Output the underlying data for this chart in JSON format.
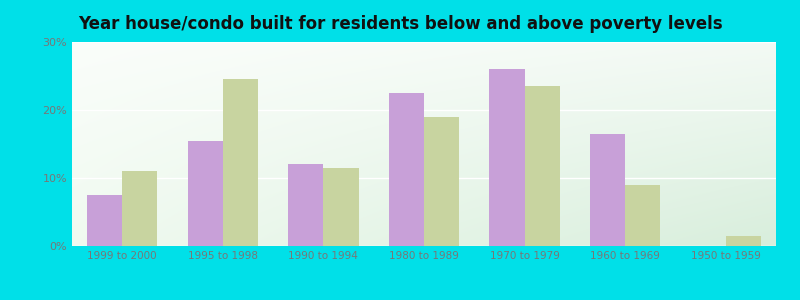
{
  "title": "Year house/condo built for residents below and above poverty levels",
  "categories": [
    "1999 to 2000",
    "1995 to 1998",
    "1990 to 1994",
    "1980 to 1989",
    "1970 to 1979",
    "1960 to 1969",
    "1950 to 1959"
  ],
  "below_poverty": [
    7.5,
    15.5,
    12.0,
    22.5,
    26.0,
    16.5,
    0.0
  ],
  "above_poverty": [
    11.0,
    24.5,
    11.5,
    19.0,
    23.5,
    9.0,
    1.5
  ],
  "color_below": "#c8a0d8",
  "color_above": "#c8d4a0",
  "ylim": [
    0,
    30
  ],
  "yticks": [
    0,
    10,
    20,
    30
  ],
  "ytick_labels": [
    "0%",
    "10%",
    "20%",
    "30%"
  ],
  "outer_color": "#00e0e8",
  "title_fontsize": 12,
  "bar_width": 0.35,
  "grid_color": "#ffffff",
  "tick_color": "#777777",
  "bg_left": "#e8f5e0",
  "bg_right": "#c8ece0"
}
